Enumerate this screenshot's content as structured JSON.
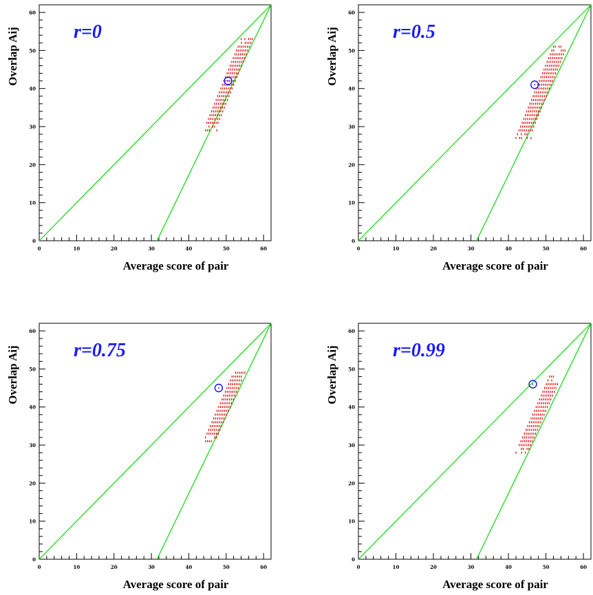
{
  "colors": {
    "frame": "#000000",
    "guide_lines": "#00dd00",
    "scatter": "#dd0000",
    "marker": "#0000ff",
    "panel_label": "#1a1aff"
  },
  "chart_data": [
    {
      "type": "scatter",
      "panel_label": "r=0",
      "xlabel": "Average score of pair",
      "ylabel": "Overlap Aij",
      "xlim": [
        0,
        62
      ],
      "ylim": [
        0,
        62
      ],
      "xticks": [
        0,
        10,
        20,
        30,
        40,
        50,
        60
      ],
      "yticks": [
        0,
        10,
        20,
        30,
        40,
        50,
        60
      ],
      "guide_lines": [
        {
          "from": [
            0,
            0
          ],
          "to": [
            62,
            62
          ]
        },
        {
          "from": [
            31.5,
            0
          ],
          "to": [
            62,
            62
          ]
        }
      ],
      "marker": {
        "x": 50.5,
        "y": 42
      },
      "cloud": {
        "y_from": 29,
        "y_to": 53,
        "x_left_at_bottom": 44,
        "x_left_at_top": 54,
        "x_right_at_bottom": 47.5,
        "x_right_at_top": 57
      }
    },
    {
      "type": "scatter",
      "panel_label": "r=0.5",
      "xlabel": "Average score of pair",
      "ylabel": "Overlap Aij",
      "xlim": [
        0,
        62
      ],
      "ylim": [
        0,
        62
      ],
      "xticks": [
        0,
        10,
        20,
        30,
        40,
        50,
        60
      ],
      "yticks": [
        0,
        10,
        20,
        30,
        40,
        50,
        60
      ],
      "guide_lines": [
        {
          "from": [
            0,
            0
          ],
          "to": [
            62,
            62
          ]
        },
        {
          "from": [
            31.5,
            0
          ],
          "to": [
            62,
            62
          ]
        }
      ],
      "marker": {
        "x": 47,
        "y": 41
      },
      "cloud": {
        "y_from": 27,
        "y_to": 51,
        "x_left_at_bottom": 42,
        "x_left_at_top": 52,
        "x_right_at_bottom": 46,
        "x_right_at_top": 55.5
      }
    },
    {
      "type": "scatter",
      "panel_label": "r=0.75",
      "xlabel": "Average score of pair",
      "ylabel": "Overlap Aij",
      "xlim": [
        0,
        62
      ],
      "ylim": [
        0,
        62
      ],
      "xticks": [
        0,
        10,
        20,
        30,
        40,
        50,
        60
      ],
      "yticks": [
        0,
        10,
        20,
        30,
        40,
        50,
        60
      ],
      "guide_lines": [
        {
          "from": [
            0,
            0
          ],
          "to": [
            62,
            62
          ]
        },
        {
          "from": [
            31.5,
            0
          ],
          "to": [
            62,
            62
          ]
        }
      ],
      "marker": {
        "x": 48,
        "y": 45
      },
      "cloud": {
        "y_from": 31,
        "y_to": 49,
        "x_left_at_bottom": 44,
        "x_left_at_top": 52,
        "x_right_at_bottom": 47,
        "x_right_at_top": 55
      }
    },
    {
      "type": "scatter",
      "panel_label": "r=0.99",
      "xlabel": "Average score of pair",
      "ylabel": "Overlap Aij",
      "xlim": [
        0,
        62
      ],
      "ylim": [
        0,
        62
      ],
      "xticks": [
        0,
        10,
        20,
        30,
        40,
        50,
        60
      ],
      "yticks": [
        0,
        10,
        20,
        30,
        40,
        50,
        60
      ],
      "guide_lines": [
        {
          "from": [
            0,
            0
          ],
          "to": [
            62,
            62
          ]
        },
        {
          "from": [
            31.5,
            0
          ],
          "to": [
            62,
            62
          ]
        }
      ],
      "marker": {
        "x": 46.5,
        "y": 46
      },
      "cloud": {
        "y_from": 28,
        "y_to": 48,
        "x_left_at_bottom": 42,
        "x_left_at_top": 51,
        "x_right_at_bottom": 45.5,
        "x_right_at_top": 54
      }
    }
  ]
}
